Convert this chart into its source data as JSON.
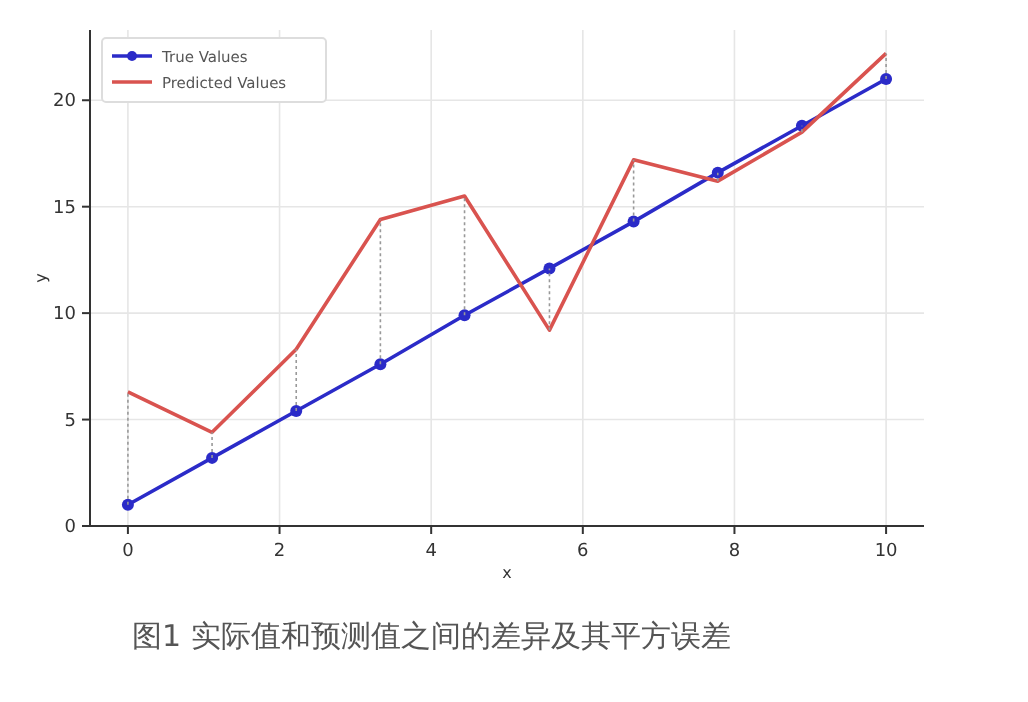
{
  "chart_data": {
    "type": "line",
    "xlabel": "x",
    "ylabel": "y",
    "x": [
      0,
      1.11,
      2.22,
      3.33,
      4.44,
      5.56,
      6.67,
      7.78,
      8.89,
      10
    ],
    "series": [
      {
        "name": "True Values",
        "color": "#2b2bc8",
        "marker": "circle",
        "values": [
          1,
          3.2,
          5.4,
          7.6,
          9.9,
          12.1,
          14.3,
          16.6,
          18.8,
          21
        ],
        "errors": [
          [
            1,
            6.3
          ],
          [
            3.2,
            4.4
          ],
          [
            5.4,
            8.3
          ],
          [
            7.6,
            14.4
          ],
          [
            9.9,
            15.5
          ],
          [
            9.2,
            12.1
          ],
          [
            14.3,
            17.2
          ],
          [
            16.2,
            16.6
          ],
          [
            18.5,
            18.8
          ],
          [
            21,
            22.2
          ]
        ]
      },
      {
        "name": "Predicted Values",
        "color": "#d9534f",
        "marker": "none",
        "values": [
          6.3,
          4.4,
          8.3,
          14.4,
          15.5,
          9.2,
          17.2,
          16.2,
          18.5,
          22.2
        ]
      }
    ],
    "xlim": [
      -0.5,
      10.5
    ],
    "xticks": [
      0,
      2,
      4,
      6,
      8,
      10
    ],
    "ylim": [
      0,
      23.3
    ],
    "yticks": [
      0,
      5,
      10,
      15,
      20
    ],
    "grid": true,
    "legend": "top left",
    "annotations": [
      "图1 实际值和预测值之间的差异及其平方误差"
    ]
  }
}
